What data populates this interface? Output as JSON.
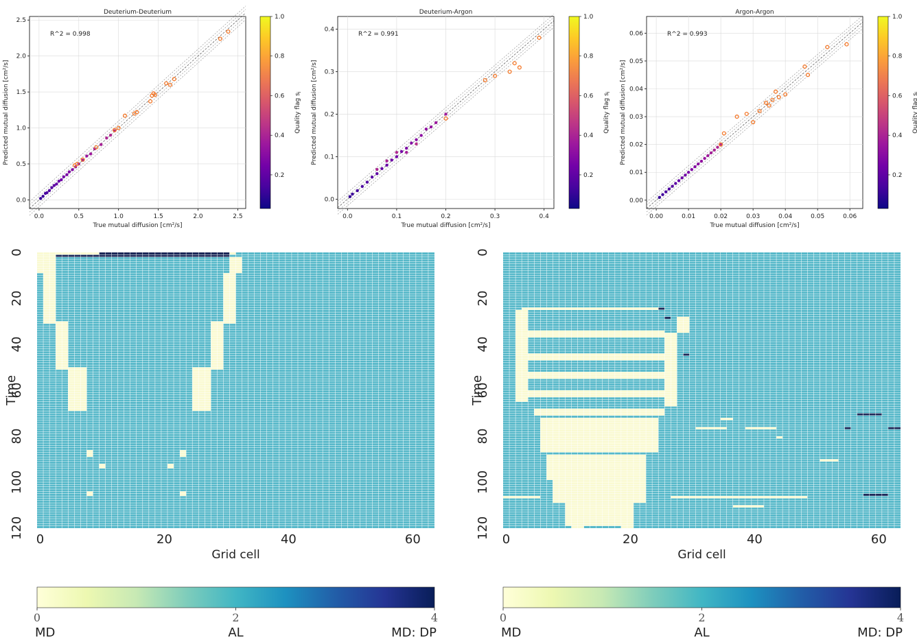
{
  "chart_data": [
    {
      "type": "scatter",
      "title": "Deuterium-Deuterium",
      "xlabel": "True mutual diffusion [cm²/s]",
      "ylabel": "Predicted mutual diffusion [cm²/s]",
      "xlim": [
        -0.12,
        2.6
      ],
      "ylim": [
        -0.12,
        2.55
      ],
      "xticks": [
        0.0,
        0.5,
        1.0,
        1.5,
        2.0,
        2.5
      ],
      "xticklabels": [
        "0.0",
        "0.5",
        "1.0",
        "1.5",
        "2.0",
        "2.5"
      ],
      "yticks": [
        0.0,
        0.5,
        1.0,
        1.5,
        2.0,
        2.5
      ],
      "yticklabels": [
        "0.0",
        "0.5",
        "1.0",
        "1.5",
        "2.0",
        "2.5"
      ],
      "annotation": "R^2 = 0.998",
      "colorbar": {
        "label": "Quality flag s",
        "label_sub": "i",
        "ticks": [
          0.2,
          0.4,
          0.6,
          0.8,
          1.0
        ],
        "ticklabels": [
          "0.2",
          "0.4",
          "0.6",
          "0.8",
          "1.0"
        ],
        "colormap": "plasma"
      },
      "grid": true,
      "series": [
        {
          "marker": "dots",
          "color_by": "quality",
          "x": [
            0.02,
            0.05,
            0.08,
            0.1,
            0.13,
            0.16,
            0.19,
            0.22,
            0.25,
            0.28,
            0.31,
            0.35,
            0.38,
            0.42,
            0.46,
            0.5,
            0.55,
            0.6,
            0.65,
            0.7,
            0.78,
            0.85,
            0.9,
            0.95
          ],
          "y": [
            0.02,
            0.05,
            0.09,
            0.1,
            0.13,
            0.17,
            0.2,
            0.22,
            0.26,
            0.28,
            0.32,
            0.35,
            0.39,
            0.42,
            0.46,
            0.5,
            0.55,
            0.61,
            0.64,
            0.71,
            0.77,
            0.86,
            0.9,
            0.96
          ]
        },
        {
          "marker": "open-circles",
          "color": "#f5792a",
          "x": [
            0.45,
            0.48,
            0.55,
            0.72,
            0.95,
            1.0,
            1.08,
            1.2,
            1.23,
            1.4,
            1.42,
            1.44,
            1.46,
            1.6,
            1.65,
            1.7,
            2.28,
            2.38
          ],
          "y": [
            0.48,
            0.5,
            0.56,
            0.73,
            0.97,
            1.0,
            1.17,
            1.2,
            1.22,
            1.37,
            1.45,
            1.48,
            1.46,
            1.62,
            1.6,
            1.68,
            2.24,
            2.34
          ]
        }
      ]
    },
    {
      "type": "scatter",
      "title": "Deuterium-Argon",
      "xlabel": "True mutual diffusion [cm²/s]",
      "ylabel": "Predicted mutual diffusion [cm²/s]",
      "xlim": [
        -0.02,
        0.42
      ],
      "ylim": [
        -0.022,
        0.43
      ],
      "xticks": [
        0.0,
        0.1,
        0.2,
        0.3,
        0.4
      ],
      "xticklabels": [
        "0.0",
        "0.1",
        "0.2",
        "0.3",
        "0.4"
      ],
      "yticks": [
        0.0,
        0.1,
        0.2,
        0.3,
        0.4
      ],
      "yticklabels": [
        "0.0",
        "0.1",
        "0.2",
        "0.3",
        "0.4"
      ],
      "annotation": "R^2 = 0.991",
      "colorbar": {
        "label": "Quality flag s",
        "label_sub": "i",
        "ticks": [
          0.2,
          0.4,
          0.6,
          0.8,
          1.0
        ],
        "ticklabels": [
          "0.2",
          "0.4",
          "0.6",
          "0.8",
          "1.0"
        ],
        "colormap": "plasma"
      },
      "grid": true,
      "series": [
        {
          "marker": "dots",
          "color_by": "quality",
          "x": [
            0.005,
            0.01,
            0.02,
            0.03,
            0.04,
            0.05,
            0.06,
            0.07,
            0.08,
            0.09,
            0.1,
            0.11,
            0.12,
            0.13,
            0.14,
            0.15,
            0.16,
            0.17,
            0.18,
            0.2,
            0.12,
            0.08,
            0.06,
            0.1,
            0.14
          ],
          "y": [
            0.006,
            0.012,
            0.02,
            0.03,
            0.04,
            0.052,
            0.06,
            0.072,
            0.08,
            0.092,
            0.1,
            0.112,
            0.12,
            0.132,
            0.14,
            0.15,
            0.165,
            0.17,
            0.18,
            0.2,
            0.11,
            0.09,
            0.07,
            0.11,
            0.13
          ]
        },
        {
          "marker": "open-circles",
          "color": "#f5792a",
          "x": [
            0.2,
            0.28,
            0.3,
            0.33,
            0.34,
            0.35,
            0.39
          ],
          "y": [
            0.19,
            0.28,
            0.29,
            0.3,
            0.32,
            0.31,
            0.38
          ]
        }
      ]
    },
    {
      "type": "scatter",
      "title": "Argon-Argon",
      "xlabel": "True mutual diffusion [cm²/s]",
      "ylabel": "Predicted mutual diffusion [cm²/s]",
      "xlim": [
        -0.003,
        0.064
      ],
      "ylim": [
        -0.003,
        0.066
      ],
      "xticks": [
        0.0,
        0.01,
        0.02,
        0.03,
        0.04,
        0.05,
        0.06
      ],
      "xticklabels": [
        "0.00",
        "0.01",
        "0.02",
        "0.03",
        "0.04",
        "0.05",
        "0.06"
      ],
      "yticks": [
        0.0,
        0.01,
        0.02,
        0.03,
        0.04,
        0.05,
        0.06
      ],
      "yticklabels": [
        "0.00",
        "0.01",
        "0.02",
        "0.03",
        "0.04",
        "0.05",
        "0.06"
      ],
      "annotation": "R^2 = 0.993",
      "colorbar": {
        "label": "Quality flag s",
        "label_sub": "i",
        "ticks": [
          0.2,
          0.4,
          0.6,
          0.8,
          1.0
        ],
        "ticklabels": [
          "0.2",
          "0.4",
          "0.6",
          "0.8",
          "1.0"
        ],
        "colormap": "plasma"
      },
      "grid": true,
      "series": [
        {
          "marker": "dots",
          "color_by": "quality",
          "x": [
            0.001,
            0.002,
            0.003,
            0.004,
            0.005,
            0.006,
            0.007,
            0.008,
            0.009,
            0.01,
            0.011,
            0.012,
            0.013,
            0.014,
            0.015,
            0.016,
            0.017,
            0.018,
            0.019,
            0.02
          ],
          "y": [
            0.001,
            0.002,
            0.003,
            0.004,
            0.005,
            0.006,
            0.007,
            0.008,
            0.009,
            0.01,
            0.011,
            0.012,
            0.013,
            0.014,
            0.015,
            0.016,
            0.017,
            0.018,
            0.019,
            0.02
          ]
        },
        {
          "marker": "open-circles",
          "color": "#f5792a",
          "x": [
            0.02,
            0.021,
            0.025,
            0.028,
            0.03,
            0.032,
            0.034,
            0.035,
            0.036,
            0.037,
            0.038,
            0.04,
            0.046,
            0.047,
            0.053,
            0.059
          ],
          "y": [
            0.02,
            0.024,
            0.03,
            0.031,
            0.028,
            0.032,
            0.035,
            0.034,
            0.036,
            0.039,
            0.037,
            0.038,
            0.048,
            0.045,
            0.055,
            0.056
          ]
        }
      ]
    },
    {
      "type": "heatmap",
      "xlabel": "Grid cell",
      "ylabel": "Time",
      "xticks": [
        0,
        20,
        40,
        60
      ],
      "yticks": [
        0,
        20,
        40,
        60,
        80,
        100,
        120
      ],
      "n_cols": 64,
      "n_rows": 120,
      "background_value": 2,
      "colorbar": {
        "min": 0,
        "max": 4,
        "ticks": [
          0,
          2,
          4
        ],
        "labels": [
          "MD",
          "AL",
          "MD: DP"
        ],
        "colormap": "YlGnBu"
      },
      "cells": [
        {
          "value": 0,
          "row_range": [
            0,
            0
          ],
          "col_range": [
            0,
            31
          ]
        },
        {
          "value": 4,
          "row_range": [
            0,
            0
          ],
          "col_range": [
            10,
            30
          ]
        },
        {
          "value": 4,
          "row_range": [
            1,
            1
          ],
          "col_range": [
            3,
            30
          ]
        },
        {
          "value": 0,
          "row_range": [
            1,
            8
          ],
          "col_range": [
            0,
            2
          ]
        },
        {
          "value": 0,
          "row_range": [
            2,
            8
          ],
          "col_range": [
            31,
            32
          ]
        },
        {
          "value": 0,
          "row_range": [
            9,
            30
          ],
          "col_range": [
            1,
            2
          ]
        },
        {
          "value": 0,
          "row_range": [
            30,
            50
          ],
          "col_range": [
            3,
            4
          ]
        },
        {
          "value": 0,
          "row_range": [
            50,
            68
          ],
          "col_range": [
            5,
            7
          ]
        },
        {
          "value": 0,
          "row_range": [
            9,
            30
          ],
          "col_range": [
            30,
            31
          ]
        },
        {
          "value": 0,
          "row_range": [
            30,
            50
          ],
          "col_range": [
            28,
            29
          ]
        },
        {
          "value": 0,
          "row_range": [
            50,
            68
          ],
          "col_range": [
            25,
            27
          ]
        },
        {
          "value": 0,
          "row_range": [
            86,
            88
          ],
          "col_range": [
            8,
            8
          ]
        },
        {
          "value": 0,
          "row_range": [
            92,
            93
          ],
          "col_range": [
            10,
            10
          ]
        },
        {
          "value": 0,
          "row_range": [
            86,
            88
          ],
          "col_range": [
            23,
            23
          ]
        },
        {
          "value": 0,
          "row_range": [
            92,
            93
          ],
          "col_range": [
            21,
            21
          ]
        },
        {
          "value": 0,
          "row_range": [
            104,
            105
          ],
          "col_range": [
            8,
            8
          ]
        },
        {
          "value": 0,
          "row_range": [
            104,
            105
          ],
          "col_range": [
            23,
            23
          ]
        }
      ]
    },
    {
      "type": "heatmap",
      "xlabel": "Grid cell",
      "ylabel": "Time",
      "xticks": [
        0,
        20,
        40,
        60
      ],
      "yticks": [
        0,
        20,
        40,
        60,
        80,
        100,
        120
      ],
      "n_cols": 64,
      "n_rows": 120,
      "background_value": 2,
      "colorbar": {
        "min": 0,
        "max": 4,
        "ticks": [
          0,
          2,
          4
        ],
        "labels": [
          "MD",
          "AL",
          "MD: DP"
        ],
        "colormap": "YlGnBu"
      },
      "cells": [
        {
          "value": 0,
          "row_range": [
            24,
            24
          ],
          "col_range": [
            3,
            25
          ]
        },
        {
          "value": 4,
          "row_range": [
            24,
            24
          ],
          "col_range": [
            25,
            25
          ]
        },
        {
          "value": 0,
          "row_range": [
            25,
            64
          ],
          "col_range": [
            2,
            3
          ]
        },
        {
          "value": 0,
          "row_range": [
            28,
            34
          ],
          "col_range": [
            28,
            29
          ]
        },
        {
          "value": 4,
          "row_range": [
            28,
            28
          ],
          "col_range": [
            26,
            26
          ]
        },
        {
          "value": 4,
          "row_range": [
            44,
            44
          ],
          "col_range": [
            29,
            29
          ]
        },
        {
          "value": 0,
          "row_range": [
            35,
            66
          ],
          "col_range": [
            26,
            27
          ]
        },
        {
          "value": 0,
          "row_range": [
            34,
            36
          ],
          "col_range": [
            4,
            25
          ]
        },
        {
          "value": 0,
          "row_range": [
            44,
            46
          ],
          "col_range": [
            4,
            25
          ]
        },
        {
          "value": 0,
          "row_range": [
            52,
            54
          ],
          "col_range": [
            4,
            25
          ]
        },
        {
          "value": 0,
          "row_range": [
            60,
            62
          ],
          "col_range": [
            4,
            25
          ]
        },
        {
          "value": 0,
          "row_range": [
            68,
            70
          ],
          "col_range": [
            5,
            25
          ]
        },
        {
          "value": 0,
          "row_range": [
            72,
            86
          ],
          "col_range": [
            6,
            24
          ]
        },
        {
          "value": 0,
          "row_range": [
            88,
            98
          ],
          "col_range": [
            7,
            22
          ]
        },
        {
          "value": 0,
          "row_range": [
            99,
            108
          ],
          "col_range": [
            8,
            22
          ]
        },
        {
          "value": 0,
          "row_range": [
            109,
            118
          ],
          "col_range": [
            10,
            20
          ]
        },
        {
          "value": 0,
          "row_range": [
            90,
            96
          ],
          "col_range": [
            13,
            17
          ]
        },
        {
          "value": 0,
          "row_range": [
            112,
            119
          ],
          "col_range": [
            11,
            12
          ]
        },
        {
          "value": 0,
          "row_range": [
            112,
            119
          ],
          "col_range": [
            19,
            20
          ]
        },
        {
          "value": 0,
          "row_range": [
            106,
            106
          ],
          "col_range": [
            0,
            5
          ]
        },
        {
          "value": 0,
          "row_range": [
            106,
            106
          ],
          "col_range": [
            27,
            48
          ]
        },
        {
          "value": 0,
          "row_range": [
            76,
            76
          ],
          "col_range": [
            31,
            35
          ]
        },
        {
          "value": 0,
          "row_range": [
            76,
            76
          ],
          "col_range": [
            39,
            43
          ]
        },
        {
          "value": 4,
          "row_range": [
            70,
            70
          ],
          "col_range": [
            57,
            60
          ]
        },
        {
          "value": 4,
          "row_range": [
            76,
            76
          ],
          "col_range": [
            55,
            55
          ]
        },
        {
          "value": 4,
          "row_range": [
            76,
            76
          ],
          "col_range": [
            62,
            63
          ]
        },
        {
          "value": 4,
          "row_range": [
            105,
            105
          ],
          "col_range": [
            58,
            61
          ]
        },
        {
          "value": 0,
          "row_range": [
            72,
            72
          ],
          "col_range": [
            35,
            36
          ]
        },
        {
          "value": 0,
          "row_range": [
            80,
            80
          ],
          "col_range": [
            44,
            44
          ]
        },
        {
          "value": 0,
          "row_range": [
            110,
            110
          ],
          "col_range": [
            37,
            41
          ]
        },
        {
          "value": 0,
          "row_range": [
            90,
            90
          ],
          "col_range": [
            51,
            53
          ]
        }
      ]
    }
  ]
}
